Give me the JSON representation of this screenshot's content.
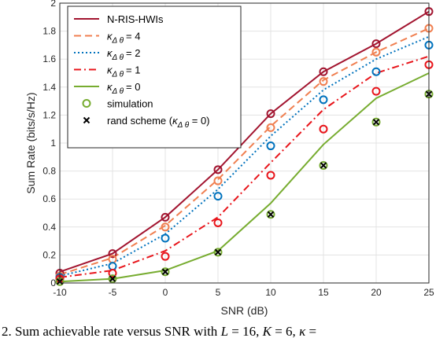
{
  "chart_data": {
    "type": "line",
    "xlabel": "SNR (dB)",
    "ylabel": "Sum Rate (bits/s/Hz)",
    "xlim": [
      -10,
      25
    ],
    "ylim": [
      0,
      2
    ],
    "xticks": [
      "-10",
      "-5",
      "0",
      "5",
      "10",
      "15",
      "20",
      "25"
    ],
    "yticks": [
      "0",
      "0.2",
      "0.4",
      "0.6",
      "0.8",
      "1",
      "1.2",
      "1.4",
      "1.6",
      "1.8",
      "2"
    ],
    "grid": true,
    "legend_position": "top-left",
    "x": [
      -10,
      -5,
      0,
      5,
      10,
      15,
      20,
      25
    ],
    "series": [
      {
        "name": "N-RIS-HWIs",
        "color": "#a2142f",
        "line_style": "solid",
        "values": [
          0.08,
          0.21,
          0.47,
          0.81,
          1.21,
          1.51,
          1.71,
          1.94
        ],
        "simulation": [
          0.07,
          0.21,
          0.47,
          0.81,
          1.21,
          1.51,
          1.71,
          1.94
        ]
      },
      {
        "name_prefix": "κ",
        "name_sub": "Δ θ",
        "name_suffix": "= 4",
        "color": "#f07f50",
        "line_style": "dashed",
        "values": [
          0.06,
          0.18,
          0.41,
          0.74,
          1.12,
          1.45,
          1.65,
          1.82
        ],
        "simulation": [
          0.05,
          0.17,
          0.4,
          0.73,
          1.11,
          1.44,
          1.65,
          1.82
        ]
      },
      {
        "name_prefix": "κ",
        "name_sub": "Δ θ",
        "name_suffix": "= 2",
        "color": "#0072bd",
        "line_style": "dotted",
        "values": [
          0.05,
          0.14,
          0.35,
          0.67,
          1.05,
          1.38,
          1.6,
          1.76
        ],
        "simulation": [
          0.04,
          0.12,
          0.32,
          0.62,
          0.98,
          1.31,
          1.51,
          1.7
        ]
      },
      {
        "name_prefix": "κ",
        "name_sub": "Δ θ",
        "name_suffix": "= 1",
        "color": "#e8151b",
        "line_style": "dashdot",
        "values": [
          0.04,
          0.09,
          0.23,
          0.47,
          0.86,
          1.24,
          1.5,
          1.62
        ],
        "simulation": [
          0.03,
          0.07,
          0.19,
          0.43,
          0.77,
          1.1,
          1.37,
          1.56
        ]
      },
      {
        "name_prefix": "κ",
        "name_sub": "Δ θ",
        "name_suffix": "= 0",
        "color": "#77ac30",
        "line_style": "solid",
        "values": [
          0.01,
          0.03,
          0.09,
          0.23,
          0.57,
          0.99,
          1.32,
          1.5
        ],
        "simulation": [
          0.01,
          0.03,
          0.08,
          0.22,
          0.49,
          0.84,
          1.15,
          1.35
        ]
      }
    ],
    "rand_scheme": {
      "values": [
        0.01,
        0.03,
        0.08,
        0.22,
        0.49,
        0.84,
        1.15,
        1.35
      ]
    },
    "legend": {
      "simulation_label": "simulation",
      "simulation_marker_color": "#77ac30",
      "rand_prefix": "rand scheme (",
      "rand_kappa": "κ",
      "rand_sub": "Δ θ",
      "rand_suffix": " = 0)"
    }
  },
  "caption": {
    "prefix": "2.  Sum achievable rate versus SNR with ",
    "L_var": "L",
    "L_val": " = 16, ",
    "K_var": "K",
    "K_val": " = 6, ",
    "kappa": "κ",
    "tail": " ="
  }
}
